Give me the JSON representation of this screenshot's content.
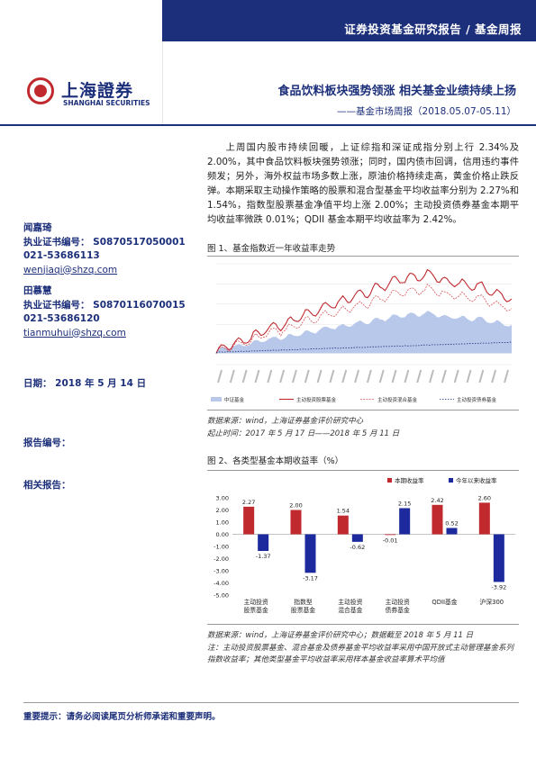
{
  "header": {
    "report_type": "证券投资基金研究报告 / 基金周报",
    "logo_cn": "上海證券",
    "logo_en": "SHANGHAI SECURITIES",
    "title": "食品饮料板块强势领涨 相关基金业绩持续上扬",
    "subtitle": "——基金市场周报（2018.05.07-05.11）"
  },
  "authors": [
    {
      "name": "闻嘉琦",
      "cert": "执业证书编号： S0870517050001",
      "phone": "021-53686113",
      "email": "wenjiaqi@shzq.com"
    },
    {
      "name": "田慕慧",
      "cert": "执业证书编号： S0870116070015",
      "phone": "021-53686120",
      "email": "tianmuhui@shzq.com"
    }
  ],
  "meta": {
    "date": "日期： 2018 年 5 月 14 日",
    "report_no": "报告编号：",
    "related": "相关报告："
  },
  "body": {
    "paragraph": "上周国内股市持续回暖，上证综指和深证成指分别上行 2.34%及 2.00%，其中食品饮料板块强势领涨；同时，国内债市回调，信用违约事件频发；另外，海外权益市场多数上涨，原油价格持续走高，黄金价格止跌反弹。本期采取主动操作策略的股票和混合型基金平均收益率分别为 2.27%和 1.54%，指数型股票基金净值平均上涨 2.00%；主动投资债券基金本期平均收益率微跌 0.01%；QDII 基金本期平均收益率为 2.42%。"
  },
  "figure1": {
    "caption": "图 1、基金指数近一年收益率走势",
    "source": "数据来源：wind，上海证券基金评价研究中心",
    "period": "起止时间：2017 年 5 月 17 日——2018 年 5 月 11 日",
    "legend": [
      "中证基金",
      "主动投资股票基金",
      "主动投资混合基金",
      "主动投资债券基金"
    ],
    "colors": {
      "area": "#b8c8ea",
      "stock": "#c0292e",
      "mixed": "#d9555a",
      "bond": "#1c2f7a"
    }
  },
  "figure2": {
    "caption": "图 2、各类型基金本期收益率（%）",
    "source": "数据来源：wind，上海证券基金评价研究中心；数据截至 2018 年 5 月 11 日",
    "note": "注：主动投资股票基金、混合基金及债券基金平均收益率采用中国开放式主动管理基金系列指数收益率；其他类型基金平均收益率采用样本基金收益率算术平均值"
  },
  "chart_data": {
    "type": "bar",
    "categories": [
      "主动投资\n股票基金",
      "指数型\n股票基金",
      "主动投资\n混合基金",
      "主动投资\n债券基金",
      "QDII基金",
      "沪深300"
    ],
    "series": [
      {
        "name": "本期收益率",
        "values": [
          2.27,
          2.0,
          1.54,
          -0.01,
          2.42,
          2.6
        ],
        "color": "#c0292e"
      },
      {
        "name": "今年以来收益率",
        "values": [
          -1.37,
          -3.17,
          -0.62,
          2.15,
          0.52,
          -3.92
        ],
        "color": "#1c2a9e"
      }
    ],
    "yticks": [
      "3.00",
      "2.00",
      "1.00",
      "0.00",
      "-1.00",
      "-2.00",
      "-3.00",
      "-4.00",
      "-5.00"
    ],
    "ylim": [
      -5,
      3
    ]
  },
  "footer": {
    "note": "重要提示：请务必阅读尾页分析师承诺和重要声明。"
  }
}
